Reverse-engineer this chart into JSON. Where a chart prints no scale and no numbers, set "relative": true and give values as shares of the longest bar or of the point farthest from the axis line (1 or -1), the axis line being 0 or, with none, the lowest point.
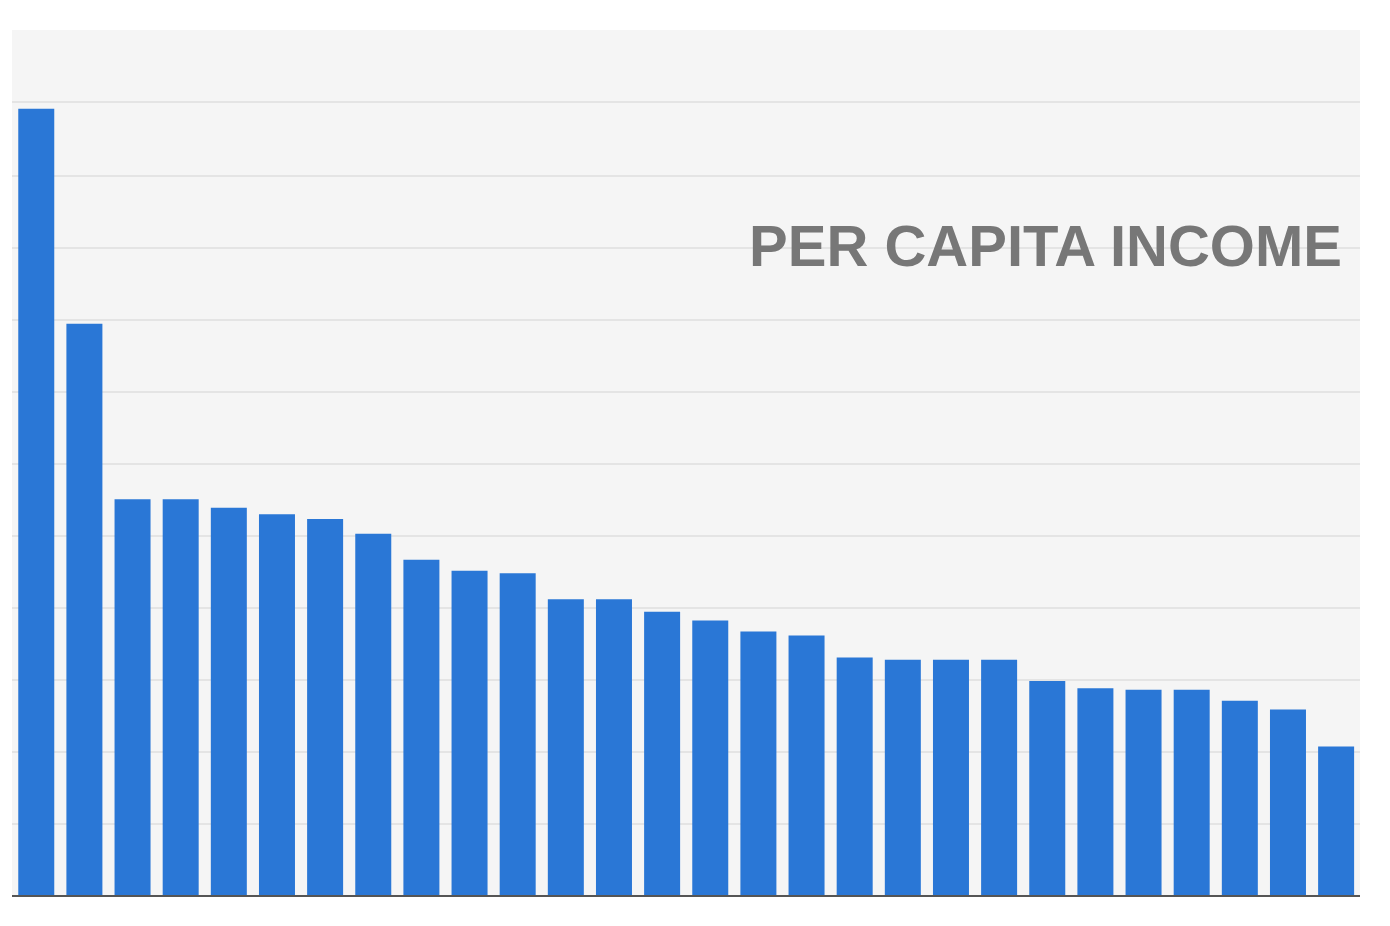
{
  "chart_data": {
    "type": "bar",
    "title": "PER CAPITA INCOME",
    "relative": true,
    "grid": "y",
    "color": "#2a77d6",
    "categories": [
      null,
      null,
      null,
      null,
      null,
      null,
      null,
      null,
      null,
      null,
      null,
      null,
      null,
      null,
      null,
      null,
      null,
      null,
      null,
      null,
      null,
      null,
      null,
      null,
      null,
      null,
      null,
      null
    ],
    "values": [
      1,
      0.727,
      0.504,
      0.504,
      0.493,
      0.485,
      0.479,
      0.46,
      0.427,
      0.413,
      0.41,
      0.377,
      0.377,
      0.361,
      0.35,
      0.336,
      0.331,
      0.303,
      0.3,
      0.3,
      0.3,
      0.273,
      0.264,
      0.262,
      0.262,
      0.248,
      0.237,
      0.19
    ]
  }
}
